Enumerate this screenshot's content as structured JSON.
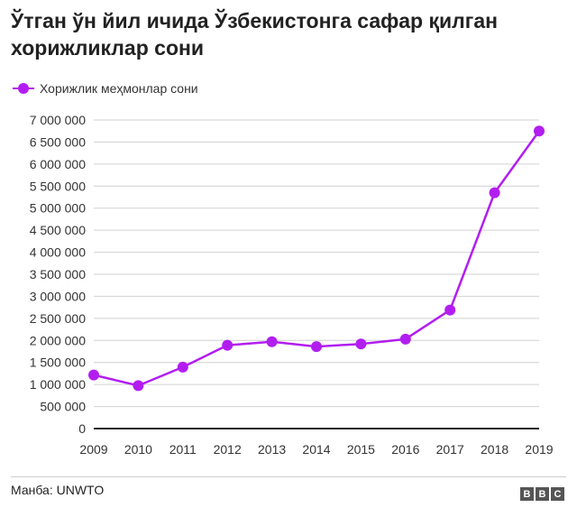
{
  "title": "Ўтган ўн йил ичида Ўзбекистонга сафар қилган хорижликлар сони",
  "source": "Манба: UNWTO",
  "brand": {
    "letters": [
      "B",
      "B",
      "C"
    ]
  },
  "colors": {
    "series": "#b21ef0",
    "axis": "#222222",
    "grid": "#d0d0d0"
  },
  "chart_data": {
    "type": "line",
    "title": "Ўтган ўн йил ичида Ўзбекистонга сафар қилган хорижликлар сони",
    "x": [
      "2009",
      "2010",
      "2011",
      "2012",
      "2013",
      "2014",
      "2015",
      "2016",
      "2017",
      "2018",
      "2019"
    ],
    "series": [
      {
        "name": "Хорижлик меҳмонлар сони",
        "values": [
          1215000,
          975000,
          1395000,
          1890000,
          1970000,
          1860000,
          1920000,
          2030000,
          2690000,
          5350000,
          6750000
        ]
      }
    ],
    "yticks": [
      "0",
      "500 000",
      "1 000 000",
      "1 500 000",
      "2 000 000",
      "2 500 000",
      "3 000 000",
      "3 500 000",
      "4 000 000",
      "4 500 000",
      "5 000 000",
      "5 500 000",
      "6 000 000",
      "6 500 000",
      "7 000 000"
    ],
    "ylim": [
      0,
      7000000
    ],
    "xlabel": "",
    "ylabel": "",
    "grid": true,
    "legend": "top-left"
  }
}
